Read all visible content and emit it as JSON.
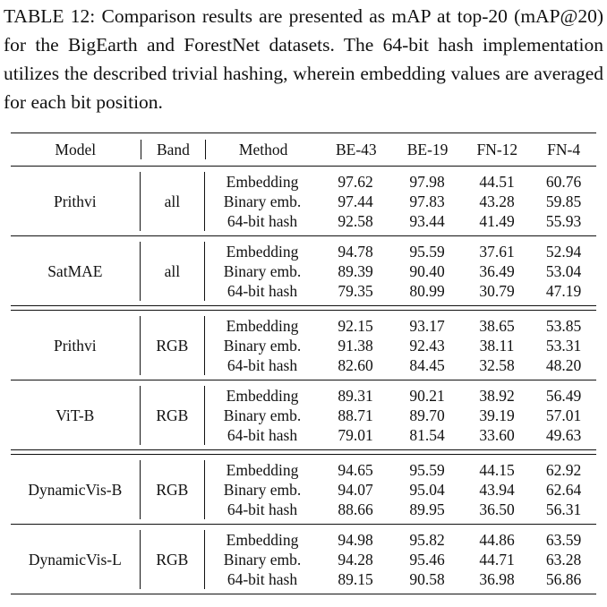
{
  "caption": "TABLE 12: Comparison results are presented as mAP at top-20 (mAP@20) for the BigEarth and ForestNet datasets. The 64-bit hash implementation utilizes the described trivial hashing, wherein embedding values are averaged for each bit position.",
  "table": {
    "headers": [
      "Model",
      "Band",
      "Method",
      "BE-43",
      "BE-19",
      "FN-12",
      "FN-4"
    ],
    "groups": [
      {
        "model": "Prithvi",
        "band": "all",
        "rows": [
          {
            "method": "Embedding",
            "values": [
              "97.62",
              "97.98",
              "44.51",
              "60.76"
            ]
          },
          {
            "method": "Binary emb.",
            "values": [
              "97.44",
              "97.83",
              "43.28",
              "59.85"
            ]
          },
          {
            "method": "64-bit hash",
            "values": [
              "92.58",
              "93.44",
              "41.49",
              "55.93"
            ]
          }
        ]
      },
      {
        "model": "SatMAE",
        "band": "all",
        "rows": [
          {
            "method": "Embedding",
            "values": [
              "94.78",
              "95.59",
              "37.61",
              "52.94"
            ]
          },
          {
            "method": "Binary emb.",
            "values": [
              "89.39",
              "90.40",
              "36.49",
              "53.04"
            ]
          },
          {
            "method": "64-bit hash",
            "values": [
              "79.35",
              "80.99",
              "30.79",
              "47.19"
            ]
          }
        ]
      },
      {
        "model": "Prithvi",
        "band": "RGB",
        "rows": [
          {
            "method": "Embedding",
            "values": [
              "92.15",
              "93.17",
              "38.65",
              "53.85"
            ]
          },
          {
            "method": "Binary emb.",
            "values": [
              "91.38",
              "92.43",
              "38.11",
              "53.31"
            ]
          },
          {
            "method": "64-bit hash",
            "values": [
              "82.60",
              "84.45",
              "32.58",
              "48.20"
            ]
          }
        ]
      },
      {
        "model": "ViT-B",
        "band": "RGB",
        "rows": [
          {
            "method": "Embedding",
            "values": [
              "89.31",
              "90.21",
              "38.92",
              "56.49"
            ]
          },
          {
            "method": "Binary emb.",
            "values": [
              "88.71",
              "89.70",
              "39.19",
              "57.01"
            ]
          },
          {
            "method": "64-bit hash",
            "values": [
              "79.01",
              "81.54",
              "33.60",
              "49.63"
            ]
          }
        ]
      },
      {
        "model": "DynamicVis-B",
        "band": "RGB",
        "rows": [
          {
            "method": "Embedding",
            "values": [
              "94.65",
              "95.59",
              "44.15",
              "62.92"
            ]
          },
          {
            "method": "Binary emb.",
            "values": [
              "94.07",
              "95.04",
              "43.94",
              "62.64"
            ]
          },
          {
            "method": "64-bit hash",
            "values": [
              "88.66",
              "89.95",
              "36.50",
              "56.31"
            ]
          }
        ]
      },
      {
        "model": "DynamicVis-L",
        "band": "RGB",
        "rows": [
          {
            "method": "Embedding",
            "values": [
              "94.98",
              "95.82",
              "44.86",
              "63.59"
            ]
          },
          {
            "method": "Binary emb.",
            "values": [
              "94.28",
              "95.46",
              "44.71",
              "63.28"
            ]
          },
          {
            "method": "64-bit hash",
            "values": [
              "89.15",
              "90.58",
              "36.98",
              "56.86"
            ]
          }
        ]
      }
    ]
  }
}
